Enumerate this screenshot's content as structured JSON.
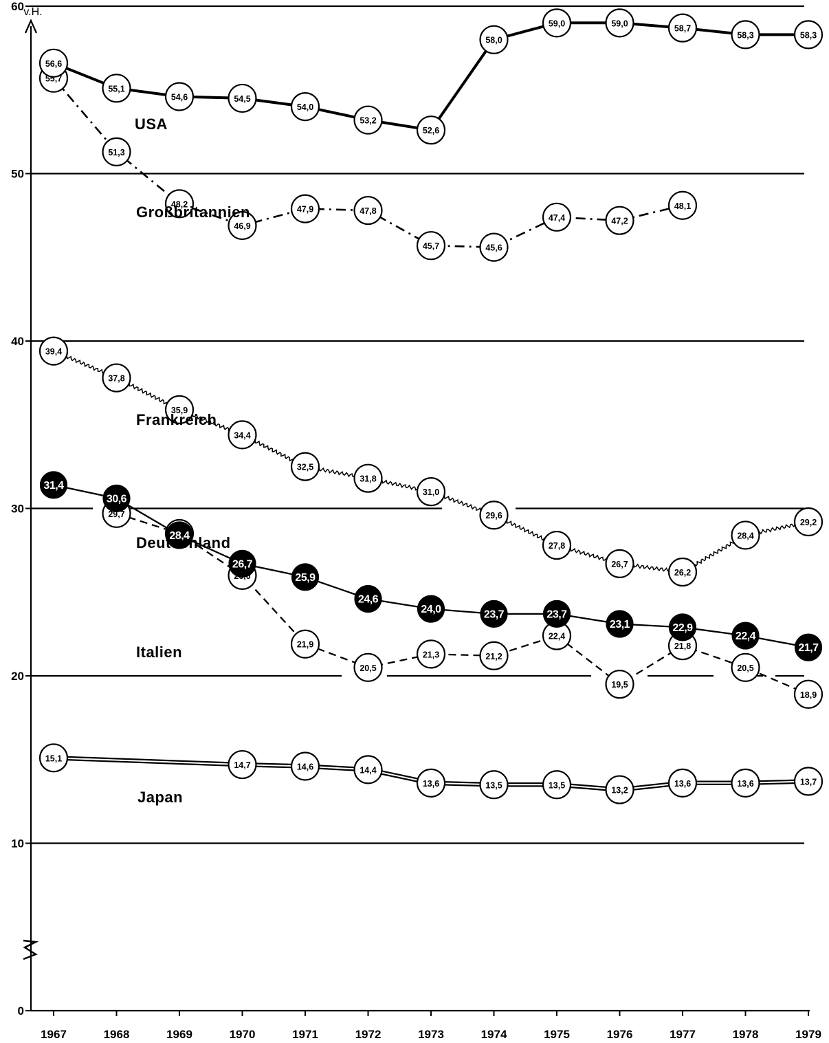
{
  "chart_data": {
    "type": "line",
    "ylabel": "v.H.",
    "ylim": [
      0,
      60
    ],
    "yticks": [
      0,
      10,
      20,
      30,
      40,
      50,
      60
    ],
    "categories": [
      "1967",
      "1968",
      "1969",
      "1970",
      "1971",
      "1972",
      "1973",
      "1974",
      "1975",
      "1976",
      "1977",
      "1978",
      "1979"
    ],
    "grid": true,
    "series": [
      {
        "name": "USA",
        "style": "solid-thick",
        "color": "#000000",
        "marker": "white",
        "values": [
          56.6,
          55.1,
          54.6,
          54.5,
          54.0,
          53.2,
          52.6,
          58.0,
          59.0,
          59.0,
          58.7,
          58.3,
          58.3
        ],
        "labels": [
          "56,6",
          "55,1",
          "54,6",
          "54,5",
          "54,0",
          "53,2",
          "52,6",
          "58,0",
          "59,0",
          "59,0",
          "58,7",
          "58,3",
          "58,3"
        ]
      },
      {
        "name": "Großbritannien",
        "style": "dash-dot",
        "color": "#000000",
        "marker": "white",
        "values": [
          55.7,
          51.3,
          48.2,
          46.9,
          47.9,
          47.8,
          45.7,
          45.6,
          47.4,
          47.2,
          48.1,
          null,
          null
        ],
        "labels": [
          "55,7",
          "51,3",
          "48,2",
          "46,9",
          "47,9",
          "47,8",
          "45,7",
          "45,6",
          "47,4",
          "47,2",
          "48,1",
          "",
          ""
        ]
      },
      {
        "name": "Frankreich",
        "style": "wavy",
        "color": "#000000",
        "marker": "white",
        "values": [
          39.4,
          37.8,
          35.9,
          34.4,
          32.5,
          31.8,
          31.0,
          29.6,
          27.8,
          26.7,
          26.2,
          28.4,
          29.2
        ],
        "labels": [
          "39,4",
          "37,8",
          "35,9",
          "34,4",
          "32,5",
          "31,8",
          "31,0",
          "29,6",
          "27,8",
          "26,7",
          "26,2",
          "28,4",
          "29,2"
        ]
      },
      {
        "name": "Deutschland",
        "style": "solid",
        "color": "#000000",
        "marker": "black",
        "values": [
          31.4,
          30.6,
          28.4,
          26.7,
          25.9,
          24.6,
          24.0,
          23.7,
          23.7,
          23.1,
          22.9,
          22.4,
          21.7
        ],
        "labels": [
          "31,4",
          "30,6",
          "28,4",
          "26,7",
          "25,9",
          "24,6",
          "24,0",
          "23,7",
          "23,7",
          "23,1",
          "22,9",
          "22,4",
          "21,7"
        ]
      },
      {
        "name": "Italien",
        "style": "dashed",
        "color": "#000000",
        "marker": "white",
        "values": [
          null,
          29.7,
          28.5,
          26.0,
          21.9,
          20.5,
          21.3,
          21.2,
          22.4,
          19.5,
          21.8,
          20.5,
          18.9
        ],
        "labels": [
          "",
          "29,7",
          "28,5",
          "26,0",
          "21,9",
          "20,5",
          "21,3",
          "21,2",
          "22,4",
          "19,5",
          "21,8",
          "20,5",
          "18,9"
        ]
      },
      {
        "name": "Japan",
        "style": "double",
        "color": "#000000",
        "marker": "white",
        "values": [
          15.1,
          null,
          null,
          14.7,
          14.6,
          14.4,
          13.6,
          13.5,
          13.5,
          13.2,
          13.6,
          13.6,
          13.7
        ],
        "labels": [
          "15,1",
          "",
          "",
          "14,7",
          "14,6",
          "14,4",
          "13,6",
          "13,5",
          "13,5",
          "13,2",
          "13,6",
          "13,6",
          "13,7"
        ]
      }
    ]
  }
}
